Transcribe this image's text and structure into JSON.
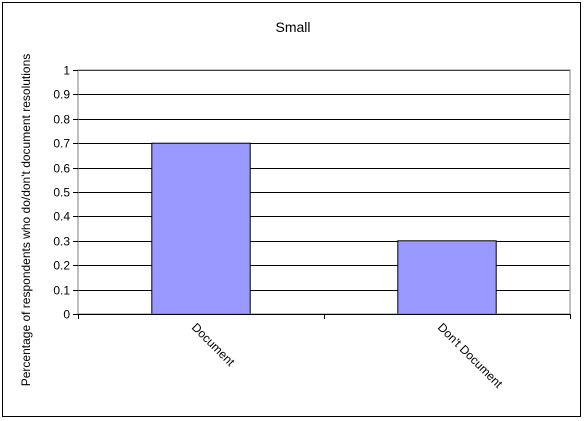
{
  "chart_data": {
    "type": "bar",
    "title": "Small",
    "xlabel": "",
    "ylabel": "Percentage of respondents who do/don't document resolutions",
    "categories": [
      "Document",
      "Don't Document"
    ],
    "values": [
      0.7,
      0.3
    ],
    "ylim": [
      0,
      1
    ],
    "yticks": [
      "0",
      "0.1",
      "0.2",
      "0.3",
      "0.4",
      "0.5",
      "0.6",
      "0.7",
      "0.8",
      "0.9",
      "1"
    ],
    "grid": true,
    "legend": "none",
    "bar_color": "#9999ff",
    "plot_background": "#ffffff"
  }
}
